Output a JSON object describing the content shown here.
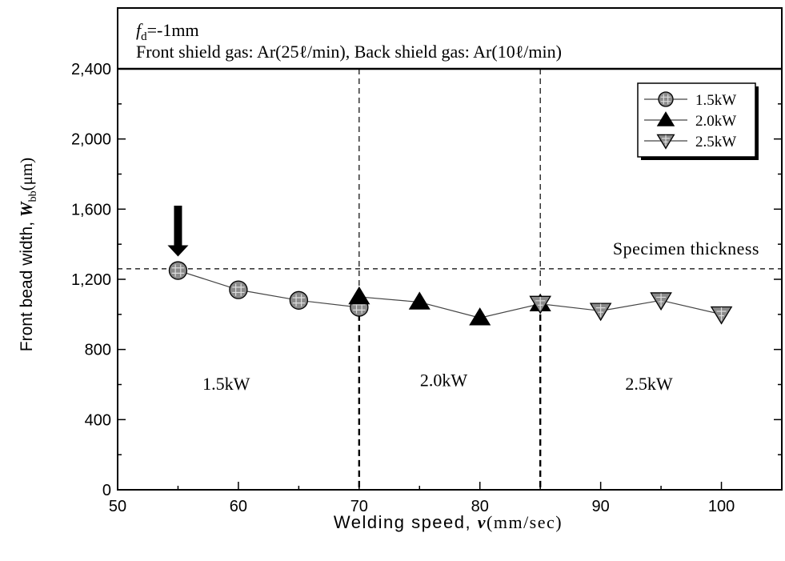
{
  "chart_data": {
    "type": "line",
    "header": {
      "line1_italic": "f",
      "line1_sub": "d",
      "line1_rest": "=-1mm",
      "line2": "Front shield gas: Ar(25ℓ/min), Back shield gas: Ar(10ℓ/min)"
    },
    "xlabel": {
      "main": "Welding speed, ",
      "var": "v",
      "unit": "(mm/sec)"
    },
    "ylabel": {
      "main": "Front bead width, ",
      "var": "W",
      "sub": "bb",
      "unit": "(μm)"
    },
    "xlim": [
      50,
      105
    ],
    "ylim": [
      0,
      2400
    ],
    "x_ticks": [
      50,
      60,
      70,
      80,
      90,
      100
    ],
    "x_tick_labels": [
      "50",
      "60",
      "70",
      "80",
      "90",
      "100"
    ],
    "y_ticks": [
      0,
      400,
      800,
      1200,
      1600,
      2000,
      2400
    ],
    "y_tick_labels": [
      "0",
      "400",
      "800",
      "1,200",
      "1,600",
      "2,000",
      "2,400"
    ],
    "series": [
      {
        "name": "1.5kW",
        "marker": "circle",
        "x": [
          55,
          60,
          65,
          70
        ],
        "y": [
          1250,
          1140,
          1080,
          1040
        ]
      },
      {
        "name": "2.0kW",
        "marker": "triangle-up",
        "x": [
          70,
          75,
          80,
          85
        ],
        "y": [
          1100,
          1070,
          980,
          1060
        ]
      },
      {
        "name": "2.5kW",
        "marker": "triangle-down",
        "x": [
          85,
          90,
          95,
          100
        ],
        "y": [
          1060,
          1020,
          1080,
          1000
        ]
      }
    ],
    "reference_line": {
      "y": 1260,
      "label": "Specimen thickness"
    },
    "region_dividers_x": [
      70,
      85
    ],
    "region_labels": [
      {
        "text": "1.5kW",
        "x": 59,
        "y": 570
      },
      {
        "text": "2.0kW",
        "x": 77,
        "y": 590
      },
      {
        "text": "2.5kW",
        "x": 94,
        "y": 570
      }
    ],
    "arrow_annotation": {
      "x": 55,
      "y_tip": 1330,
      "y_tail": 1620
    },
    "legend_placement": "top-right",
    "grid": false
  }
}
